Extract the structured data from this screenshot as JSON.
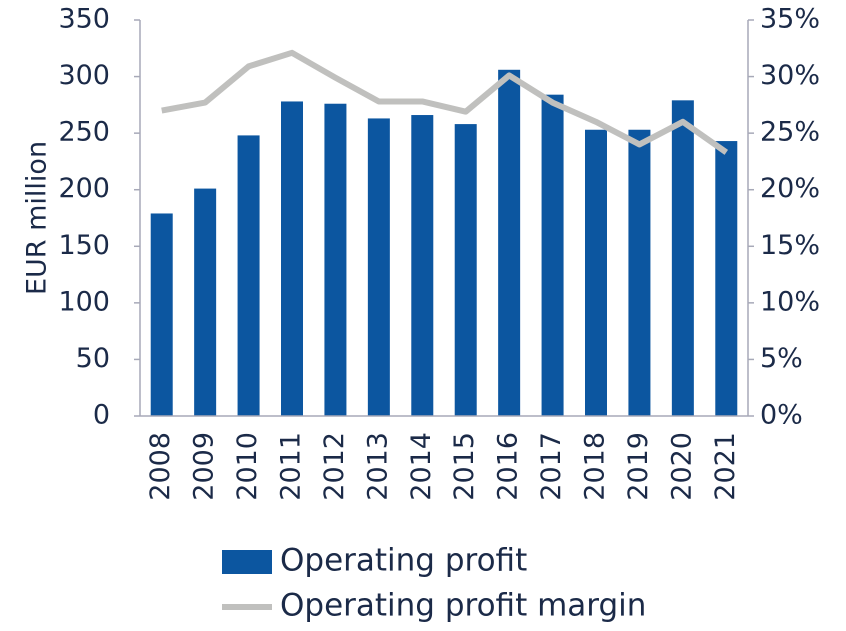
{
  "chart_data": {
    "type": "bar",
    "categories": [
      "2008",
      "2009",
      "2010",
      "2011",
      "2012",
      "2013",
      "2014",
      "2015",
      "2016",
      "2017",
      "2018",
      "2019",
      "2020",
      "2021"
    ],
    "y_label": "EUR million",
    "series": [
      {
        "name": "Operating profit",
        "type": "bar",
        "color": "#0c56a0",
        "values": [
          179,
          201,
          248,
          278,
          276,
          263,
          266,
          258,
          306,
          284,
          253,
          253,
          279,
          243
        ]
      },
      {
        "name": "Operating profit margin",
        "type": "line",
        "axis": "y2",
        "color": "#c0c0be",
        "values": [
          27.0,
          27.7,
          30.9,
          32.1,
          29.9,
          27.8,
          27.8,
          26.9,
          30.1,
          27.7,
          26.0,
          24.0,
          26.0,
          23.3
        ]
      }
    ],
    "ylim": [
      0,
      350
    ],
    "yticks": [
      0,
      50,
      100,
      150,
      200,
      250,
      300,
      350
    ],
    "y2lim": [
      0,
      35
    ],
    "y2ticks": [
      {
        "value": 0,
        "label": "0%"
      },
      {
        "value": 5,
        "label": "5%"
      },
      {
        "value": 10,
        "label": "10%"
      },
      {
        "value": 15,
        "label": "15%"
      },
      {
        "value": 20,
        "label": "20%"
      },
      {
        "value": 25,
        "label": "25%"
      },
      {
        "value": 30,
        "label": "30%"
      },
      {
        "value": 35,
        "label": "35%"
      }
    ],
    "legend": "bottom"
  }
}
